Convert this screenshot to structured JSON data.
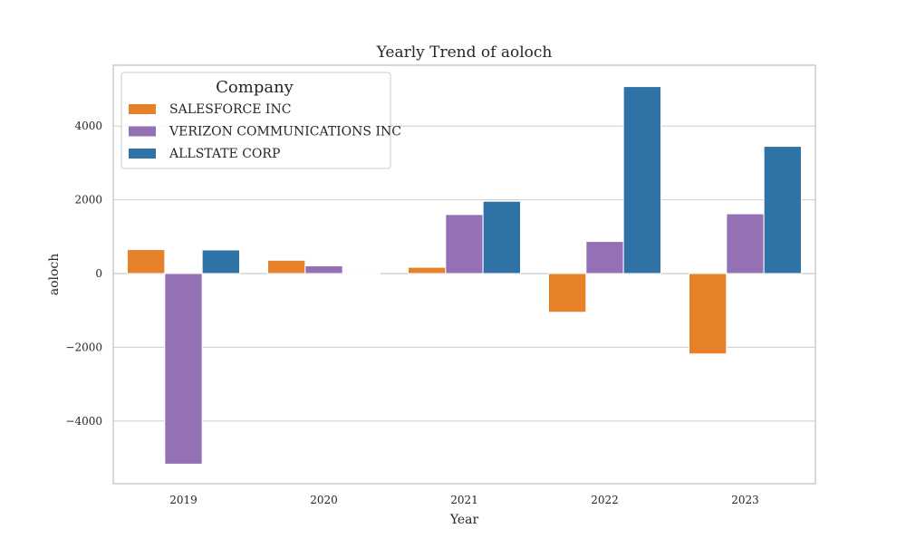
{
  "chart_data": {
    "type": "bar",
    "title": "Yearly Trend of aoloch",
    "xlabel": "Year",
    "ylabel": "aoloch",
    "categories": [
      "2019",
      "2020",
      "2021",
      "2022",
      "2023"
    ],
    "ylim": [
      -5700,
      5650
    ],
    "yticks": [
      -4000,
      -2000,
      0,
      2000,
      4000
    ],
    "ytick_labels": [
      "−4000",
      "−2000",
      "0",
      "2000",
      "4000"
    ],
    "grid": true,
    "legend": {
      "title": "Company",
      "placement": "top-left"
    },
    "series": [
      {
        "name": "SALESFORCE INC",
        "color": "#e6812a",
        "values": [
          650,
          360,
          170,
          -1050,
          -2180
        ]
      },
      {
        "name": "VERIZON COMMUNICATIONS INC",
        "color": "#9470b4",
        "values": [
          -5170,
          210,
          1600,
          870,
          1620
        ]
      },
      {
        "name": "ALLSTATE CORP",
        "color": "#2f72a5",
        "values": [
          640,
          10,
          1960,
          5070,
          3450
        ]
      }
    ]
  }
}
